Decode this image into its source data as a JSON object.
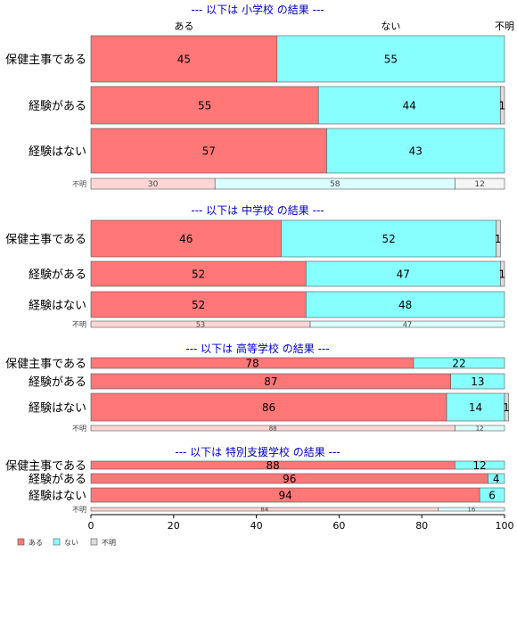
{
  "colors": {
    "aru": "#ff7777",
    "nai": "#88ffff",
    "fumei": "#dddddd",
    "title": "#0000cc"
  },
  "chart_data": {
    "type": "bar",
    "orientation": "horizontal",
    "stacked": true,
    "xlim": [
      0,
      100
    ],
    "x_ticks": [
      0,
      20,
      40,
      60,
      80,
      100
    ],
    "column_headers": [
      "ある",
      "ない",
      "不明"
    ],
    "legend": {
      "position": "bottom-left",
      "items": [
        "ある",
        "ない",
        "不明"
      ]
    },
    "panels": [
      {
        "title": "--- 以下は 小学校 の結果 ---",
        "rows": [
          {
            "label": "保健主事である",
            "values": [
              45,
              55,
              0
            ],
            "value_labels": [
              "45",
              "55",
              ""
            ]
          },
          {
            "label": "経験がある",
            "values": [
              55,
              44,
              1
            ],
            "value_labels": [
              "55",
              "44",
              "1"
            ]
          },
          {
            "label": "経験はない",
            "values": [
              57,
              43,
              0
            ],
            "value_labels": [
              "57",
              "43",
              ""
            ]
          }
        ],
        "unknown": {
          "label": "不明",
          "values": [
            30,
            58,
            12
          ],
          "value_labels": [
            "30",
            "58",
            "12"
          ]
        }
      },
      {
        "title": "--- 以下は 中学校 の結果 ---",
        "rows": [
          {
            "label": "保健主事である",
            "values": [
              46,
              52,
              1
            ],
            "value_labels": [
              "46",
              "52",
              "1"
            ]
          },
          {
            "label": "経験がある",
            "values": [
              52,
              47,
              1
            ],
            "value_labels": [
              "52",
              "47",
              "1"
            ]
          },
          {
            "label": "経験はない",
            "values": [
              52,
              48,
              0
            ],
            "value_labels": [
              "52",
              "48",
              ""
            ]
          }
        ],
        "unknown": {
          "label": "不明",
          "values": [
            53,
            47,
            0
          ],
          "value_labels": [
            "53",
            "47",
            ""
          ]
        }
      },
      {
        "title": "--- 以下は 高等学校 の結果 ---",
        "rows": [
          {
            "label": "保健主事である",
            "values": [
              78,
              22,
              0
            ],
            "value_labels": [
              "78",
              "22",
              ""
            ]
          },
          {
            "label": "経験がある",
            "values": [
              87,
              13,
              0
            ],
            "value_labels": [
              "87",
              "13",
              ""
            ]
          },
          {
            "label": "経験はない",
            "values": [
              86,
              14,
              1
            ],
            "value_labels": [
              "86",
              "14",
              "1"
            ]
          }
        ],
        "unknown": {
          "label": "不明",
          "values": [
            88,
            12,
            0
          ],
          "value_labels": [
            "88",
            "12",
            ""
          ]
        }
      },
      {
        "title": "--- 以下は 特別支援学校 の結果 ---",
        "rows": [
          {
            "label": "保健主事である",
            "values": [
              88,
              12,
              0
            ],
            "value_labels": [
              "88",
              "12",
              ""
            ]
          },
          {
            "label": "経験がある",
            "values": [
              96,
              4,
              0
            ],
            "value_labels": [
              "96",
              "4",
              ""
            ]
          },
          {
            "label": "経験はない",
            "values": [
              94,
              6,
              0
            ],
            "value_labels": [
              "94",
              "6",
              ""
            ]
          }
        ],
        "unknown": {
          "label": "不明",
          "values": [
            84,
            16,
            0
          ],
          "value_labels": [
            "84",
            "16",
            ""
          ]
        }
      }
    ]
  }
}
